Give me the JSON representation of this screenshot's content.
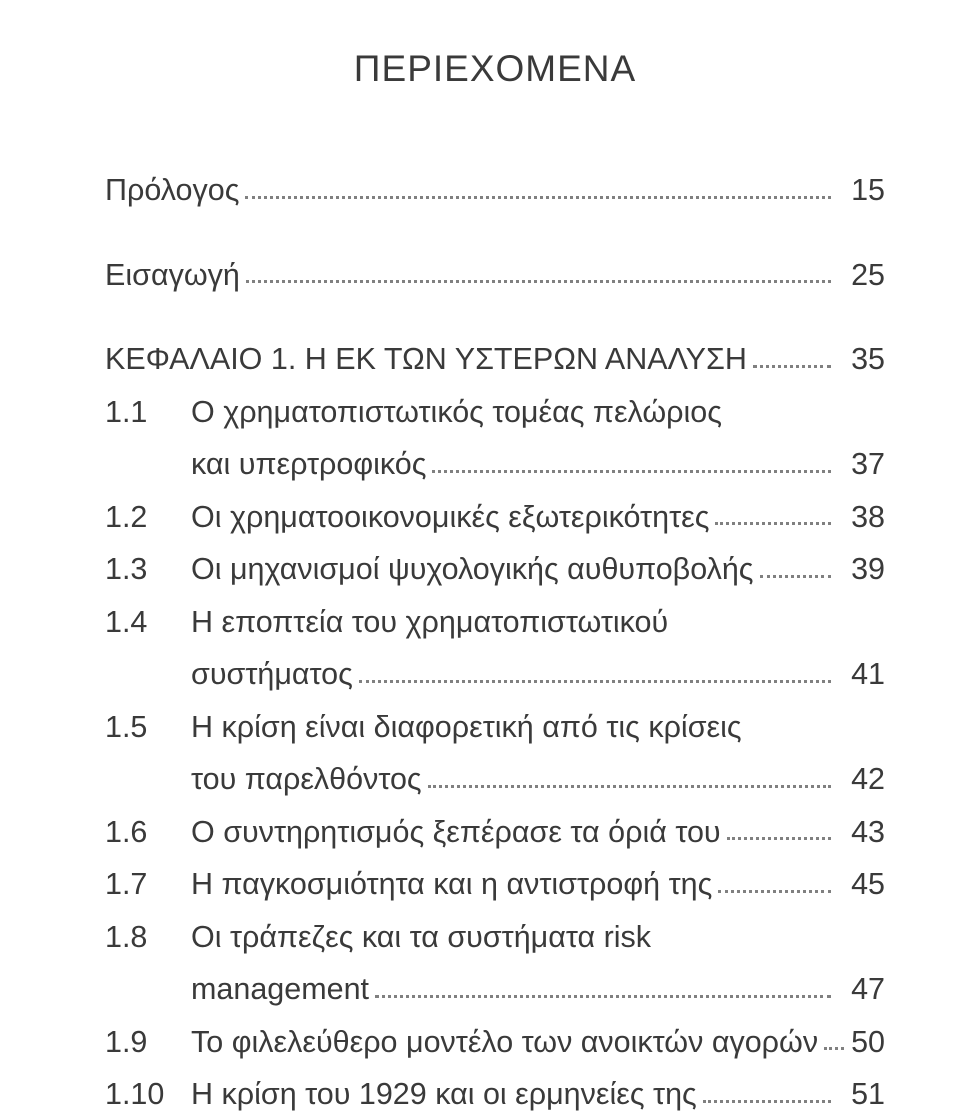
{
  "title": "ΠΕΡΙΕΧΟΜΕΝΑ",
  "entries": [
    {
      "num": "",
      "label": "Πρόλογος",
      "page": "15",
      "gap_after": true
    },
    {
      "num": "",
      "label": "Εισαγωγή",
      "page": "25",
      "gap_after": true
    },
    {
      "num": "",
      "label": "ΚΕΦΑΛΑΙΟ 1. Η ΕΚ ΤΩΝ ΥΣΤΕΡΩΝ ΑΝΑΛΥΣΗ",
      "page": "35"
    },
    {
      "num": "1.1",
      "label_line1": "Ο χρηματοπιστωτικός τομέας πελώριος",
      "label_line2": "και υπερτροφικός",
      "page": "37"
    },
    {
      "num": "1.2",
      "label": "Οι χρηματοοικονομικές εξωτερικότητες",
      "page": "38"
    },
    {
      "num": "1.3",
      "label": "Οι μηχανισμοί ψυχολογικής αυθυποβολής",
      "page": "39"
    },
    {
      "num": "1.4",
      "label_line1": "Η εποπτεία του χρηματοπιστωτικού",
      "label_line2": "συστήματος",
      "page": "41"
    },
    {
      "num": "1.5",
      "label_line1": "Η κρίση είναι διαφορετική από τις κρίσεις",
      "label_line2": "του παρελθόντος",
      "page": "42"
    },
    {
      "num": "1.6",
      "label": "Ο συντηρητισμός ξεπέρασε τα όριά του",
      "page": "43"
    },
    {
      "num": "1.7",
      "label": "Η παγκοσμιότητα και η αντιστροφή της",
      "page": "45"
    },
    {
      "num": "1.8",
      "label_line1": "Οι τράπεζες και τα συστήματα risk",
      "label_line2": "management",
      "page": "47"
    },
    {
      "num": "1.9",
      "label": "Το φιλελεύθερο μοντέλο των ανοικτών αγορών",
      "page": "50"
    },
    {
      "num": "1.10",
      "label": "Η κρίση του 1929 και οι ερμηνείες της",
      "page": "51"
    }
  ],
  "style": {
    "background_color": "#ffffff",
    "text_color": "#3a3a3a",
    "dot_color": "#808080",
    "title_fontsize": 37,
    "body_fontsize": 30.5,
    "font_family": "Arial, Helvetica, sans-serif"
  }
}
